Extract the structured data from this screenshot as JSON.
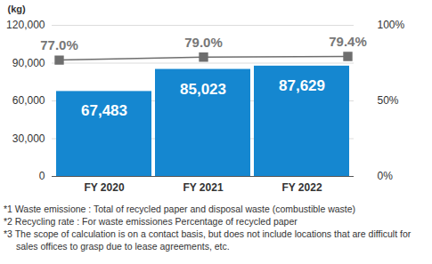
{
  "chart_data": {
    "type": "bar",
    "ylabel": "(kg)",
    "categories": [
      "FY 2020",
      "FY 2021",
      "FY 2022"
    ],
    "series": [
      {
        "type": "bar",
        "color": "#1587d0",
        "values": [
          67483,
          85023,
          87629
        ],
        "value_labels": [
          "67,483",
          "85,023",
          "87,629"
        ]
      },
      {
        "type": "line",
        "axis": "y2",
        "color": "#6e6e6e",
        "marker": "square",
        "line_style": "solid",
        "values": [
          77.0,
          79.0,
          79.4
        ],
        "value_labels": [
          "77.0%",
          "79.0%",
          "79.4%"
        ]
      }
    ],
    "ylim": [
      0,
      120000
    ],
    "yticks": [
      0,
      {
        "value": 30000,
        "label": "30,000"
      },
      {
        "value": 60000,
        "label": "60,000"
      },
      {
        "value": 90000,
        "label": "90,000"
      },
      {
        "value": 120000,
        "label": "120,000"
      }
    ],
    "y2lim": [
      0,
      100
    ],
    "y2ticks": [
      {
        "value": 0,
        "label": "0%"
      },
      {
        "value": 50,
        "label": "50%"
      },
      {
        "value": 100,
        "label": "100%"
      }
    ],
    "grid": true,
    "data_labels": true,
    "notes": [
      "*1 Waste emissione : Total of recycled paper and disposal waste (combustible waste)",
      "*2 Recycling rate : For waste emissiones Percentage of recycled paper",
      "*3 The scope of calculation is on a contact basis, but does not include locations that are difficult for sales offices to grasp due to lease agreements, etc."
    ]
  }
}
